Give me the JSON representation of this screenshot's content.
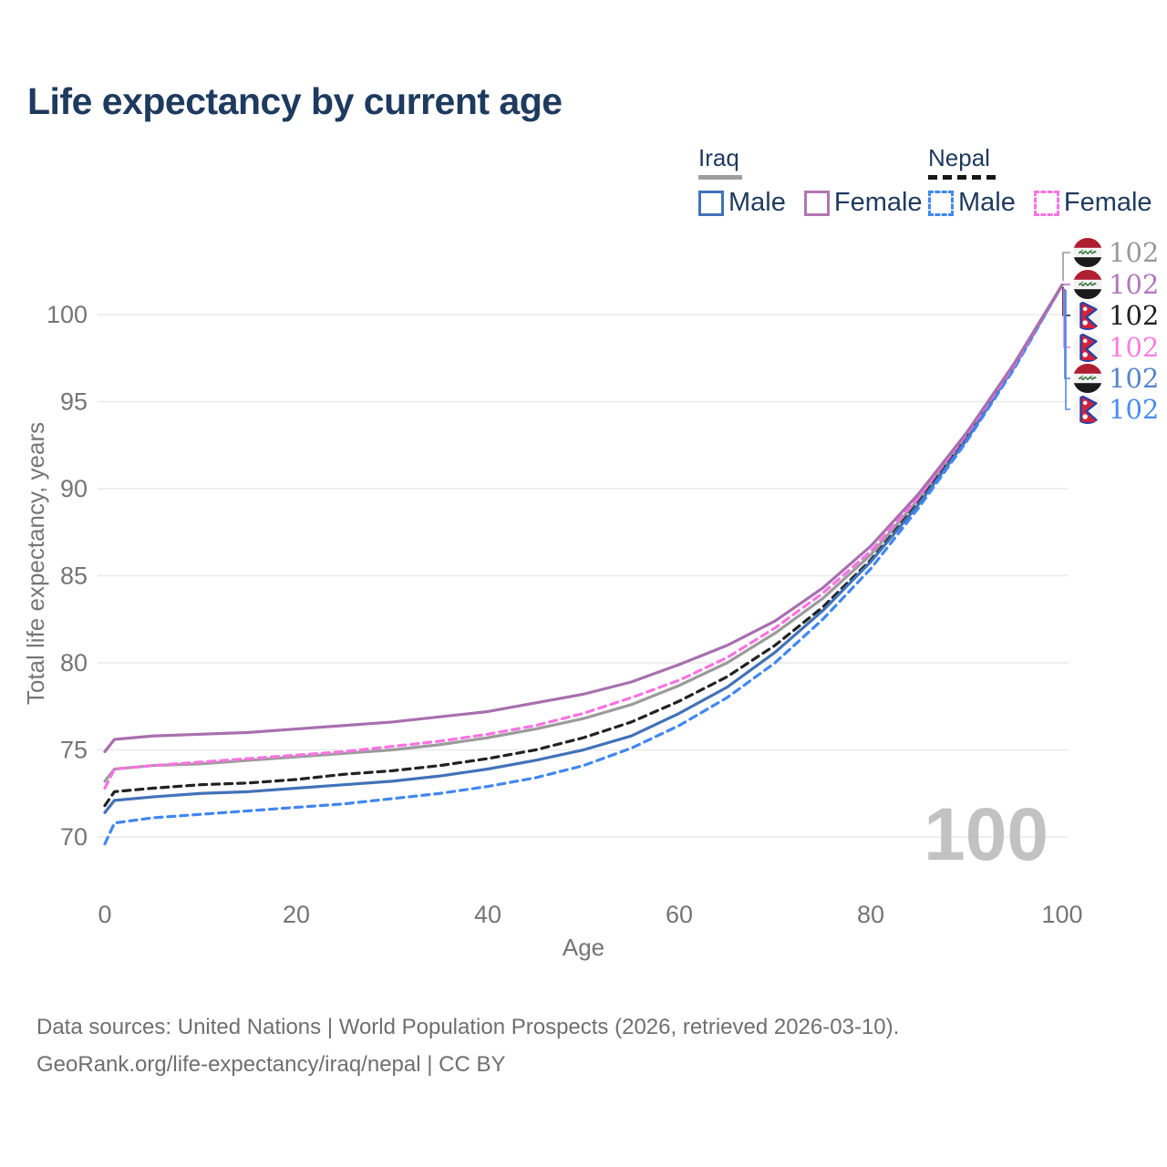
{
  "title": "Life expectancy by current age",
  "legend": {
    "groups": [
      {
        "label": "Iraq",
        "line_style": "solid",
        "underline_color": "#9e9e9e",
        "items": [
          {
            "label": "Male",
            "color": "#4272b8",
            "dashed": false
          },
          {
            "label": "Female",
            "color": "#b176b4",
            "dashed": false
          }
        ]
      },
      {
        "label": "Nepal",
        "line_style": "dashed",
        "underline_color": "#161616",
        "items": [
          {
            "label": "Male",
            "color": "#4287f0",
            "dashed": true
          },
          {
            "label": "Female",
            "color": "#f973e2",
            "dashed": true
          }
        ]
      }
    ]
  },
  "chart_data": {
    "type": "line",
    "title": "Life expectancy by current age",
    "xlabel": "Age",
    "ylabel": "Total life expectancy, years",
    "xlim": [
      0,
      100
    ],
    "ylim": [
      68,
      103.5
    ],
    "x_ticks": [
      0,
      20,
      40,
      60,
      80,
      100
    ],
    "y_ticks": [
      70,
      75,
      80,
      85,
      90,
      95,
      100
    ],
    "grid": "horizontal",
    "legend_position": "top-right",
    "x": [
      0,
      1,
      5,
      10,
      15,
      20,
      25,
      30,
      35,
      40,
      45,
      50,
      55,
      60,
      65,
      70,
      75,
      80,
      85,
      90,
      95,
      100
    ],
    "series": [
      {
        "name": "Iraq (both sexes)",
        "country": "Iraq",
        "sex": "both",
        "color": "#9b9b9b",
        "dashed": false,
        "values": [
          73.2,
          73.9,
          74.1,
          74.2,
          74.4,
          74.6,
          74.8,
          75.0,
          75.3,
          75.7,
          76.2,
          76.8,
          77.6,
          78.7,
          80.0,
          81.7,
          83.7,
          86.2,
          89.4,
          93.0,
          97.1,
          101.7
        ]
      },
      {
        "name": "Nepal (both sexes)",
        "country": "Nepal",
        "sex": "both",
        "color": "#222222",
        "dashed": true,
        "values": [
          71.8,
          72.6,
          72.8,
          73.0,
          73.1,
          73.3,
          73.6,
          73.8,
          74.1,
          74.5,
          75.0,
          75.7,
          76.6,
          77.8,
          79.2,
          81.0,
          83.2,
          85.9,
          89.2,
          92.9,
          97.0,
          101.7
        ]
      },
      {
        "name": "Iraq Male",
        "country": "Iraq",
        "sex": "male",
        "color": "#4272b8",
        "dashed": false,
        "values": [
          71.4,
          72.1,
          72.3,
          72.5,
          72.6,
          72.8,
          73.0,
          73.2,
          73.5,
          73.9,
          74.4,
          75.0,
          75.8,
          77.1,
          78.6,
          80.6,
          83.0,
          85.8,
          89.1,
          92.8,
          97.0,
          101.7
        ]
      },
      {
        "name": "Nepal Male",
        "country": "Nepal",
        "sex": "male",
        "color": "#4287f0",
        "dashed": true,
        "values": [
          69.6,
          70.8,
          71.1,
          71.3,
          71.5,
          71.7,
          71.9,
          72.2,
          72.5,
          72.9,
          73.4,
          74.1,
          75.1,
          76.4,
          78.0,
          80.0,
          82.5,
          85.4,
          88.9,
          92.7,
          96.9,
          101.7
        ]
      },
      {
        "name": "Nepal Female",
        "country": "Nepal",
        "sex": "female",
        "color": "#f973e2",
        "dashed": true,
        "values": [
          72.8,
          73.9,
          74.1,
          74.3,
          74.5,
          74.7,
          74.9,
          75.2,
          75.5,
          75.9,
          76.4,
          77.1,
          78.0,
          79.0,
          80.3,
          82.0,
          84.0,
          86.4,
          89.5,
          93.1,
          97.1,
          101.7
        ]
      },
      {
        "name": "Iraq Female",
        "country": "Iraq",
        "sex": "female",
        "color": "#a86fae",
        "dashed": false,
        "values": [
          74.9,
          75.6,
          75.8,
          75.9,
          76.0,
          76.2,
          76.4,
          76.6,
          76.9,
          77.2,
          77.7,
          78.2,
          78.9,
          79.9,
          81.0,
          82.4,
          84.3,
          86.7,
          89.7,
          93.2,
          97.2,
          101.7
        ]
      }
    ]
  },
  "axis": {
    "x_title": "Age",
    "y_title": "Total life expectancy, years"
  },
  "watermark": "100",
  "end_labels": [
    {
      "country": "Iraq",
      "flag": "iraq-flag",
      "value": "102",
      "color": "#999999"
    },
    {
      "country": "Iraq",
      "flag": "iraq-flag",
      "value": "102",
      "color": "#b277bd"
    },
    {
      "country": "Nepal",
      "flag": "nepal-flag",
      "value": "102",
      "color": "#1f1f1f"
    },
    {
      "country": "Nepal",
      "flag": "nepal-flag",
      "value": "102",
      "color": "#fb7ce3"
    },
    {
      "country": "Iraq",
      "flag": "iraq-flag",
      "value": "102",
      "color": "#5585c8"
    },
    {
      "country": "Nepal",
      "flag": "nepal-flag",
      "value": "102",
      "color": "#4a8bf5"
    }
  ],
  "footer": {
    "line1": "Data sources: United Nations | World Population Prospects (2026, retrieved 2026-03-10).",
    "line2": "GeoRank.org/life-expectancy/iraq/nepal | CC BY"
  }
}
